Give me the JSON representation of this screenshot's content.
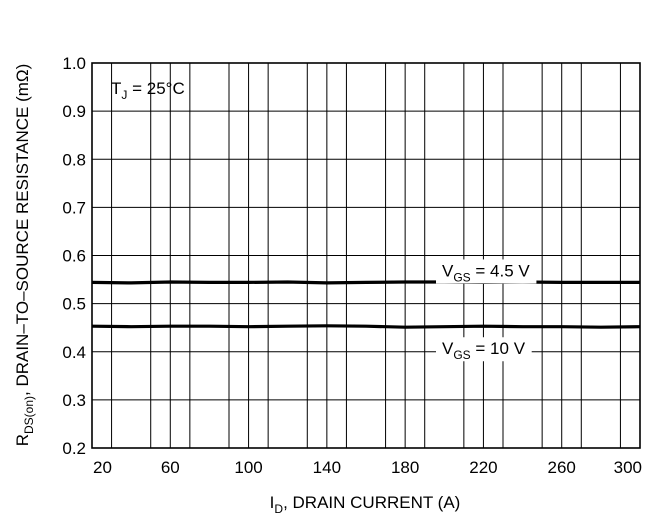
{
  "chart_data": {
    "type": "line",
    "x_ticks": [
      20,
      60,
      100,
      140,
      180,
      220,
      260,
      300
    ],
    "y_ticks": [
      "0.2",
      "0.3",
      "0.4",
      "0.5",
      "0.6",
      "0.7",
      "0.8",
      "0.9",
      "1.0"
    ],
    "xlim": [
      20,
      300
    ],
    "ylim": [
      0.2,
      1.0
    ],
    "xlabel": {
      "main": "I",
      "sub": "D",
      "rest": ", DRAIN CURRENT (A)"
    },
    "ylabel": {
      "main": "R",
      "sub": "DS(on)",
      "rest": ", DRAIN–TO–SOURCE RESISTANCE (mΩ)"
    },
    "annotation": {
      "main": "T",
      "sub": "J",
      "rest": " = 25°C"
    },
    "grid": true,
    "series": [
      {
        "name_main": "V",
        "name_sub": "GS",
        "name_rest": " = 4.5 V",
        "x": [
          20,
          40,
          60,
          80,
          100,
          120,
          140,
          160,
          180,
          200,
          220,
          240,
          260,
          280,
          300
        ],
        "values": [
          0.544,
          0.543,
          0.545,
          0.544,
          0.544,
          0.545,
          0.543,
          0.544,
          0.545,
          0.545,
          0.544,
          0.545,
          0.544,
          0.544,
          0.544
        ]
      },
      {
        "name_main": "V",
        "name_sub": "GS",
        "name_rest": " = 10 V",
        "x": [
          20,
          40,
          60,
          80,
          100,
          120,
          140,
          160,
          180,
          200,
          220,
          240,
          260,
          280,
          300
        ],
        "values": [
          0.453,
          0.452,
          0.453,
          0.453,
          0.452,
          0.453,
          0.454,
          0.453,
          0.451,
          0.452,
          0.453,
          0.452,
          0.452,
          0.451,
          0.452
        ]
      }
    ],
    "line_color": "#000000"
  }
}
